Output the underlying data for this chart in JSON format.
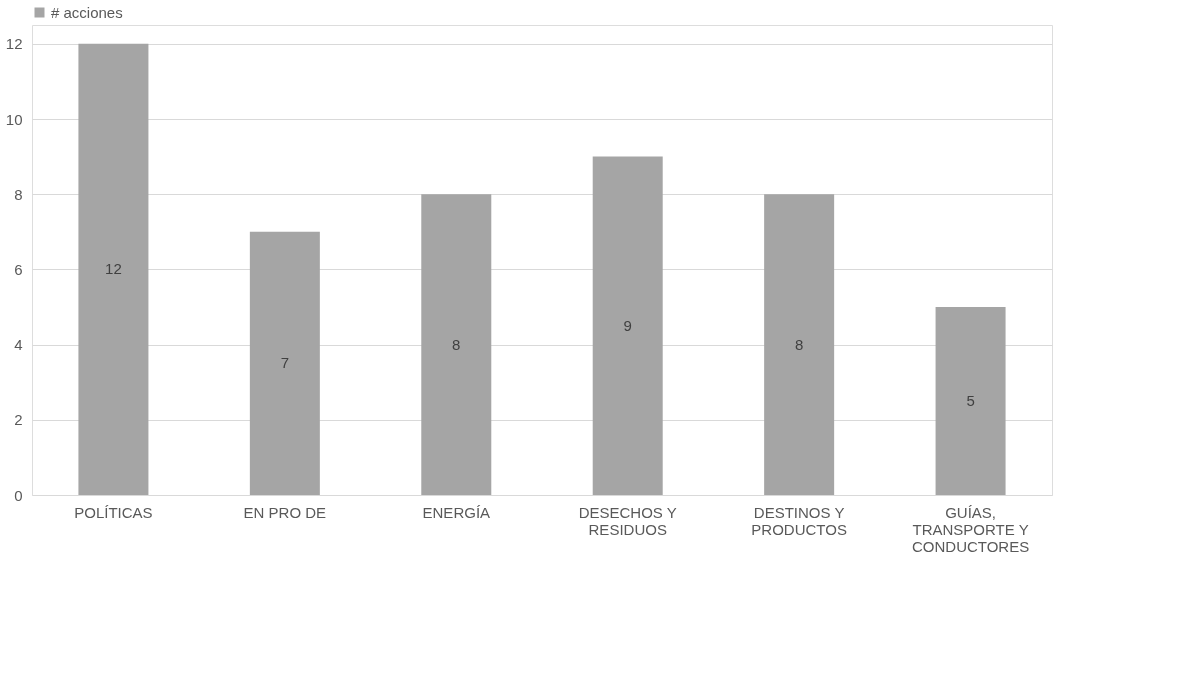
{
  "chart_data": {
    "type": "bar",
    "categories": [
      "POLÍTICAS",
      "EN PRO DE",
      "ENERGÍA",
      "DESECHOS Y RESIDUOS",
      "DESTINOS Y PRODUCTOS",
      "GUÍAS, TRANSPORTE Y CONDUCTORES"
    ],
    "series": [
      {
        "name": "# acciones",
        "color": "#a5a5a5",
        "values": [
          12,
          7,
          8,
          9,
          8,
          5
        ]
      }
    ],
    "ylim": [
      0,
      12.5
    ],
    "yticks": [
      0,
      2,
      4,
      6,
      8,
      10,
      12
    ],
    "grid": "y",
    "legend": "top left",
    "data_labels": true
  }
}
